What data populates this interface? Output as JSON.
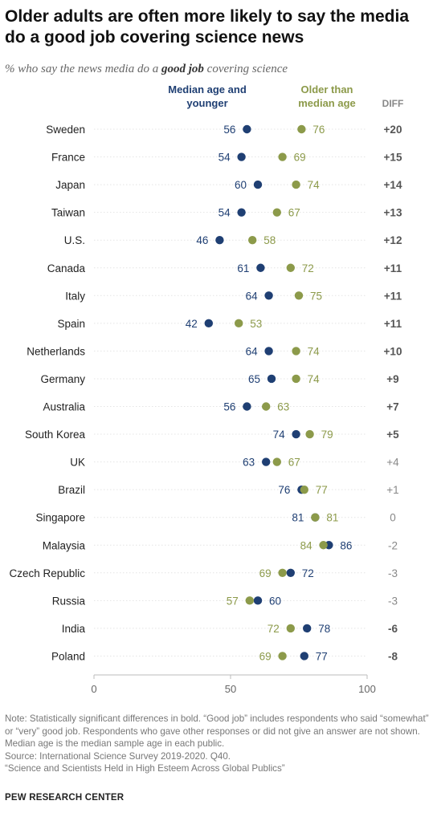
{
  "title": "Older adults are often more likely to say the media do a good job covering science news",
  "subtitle": {
    "before": "% who say the news media do a ",
    "bold": "good job",
    "after": " covering science"
  },
  "legend": {
    "younger": "Median age and younger",
    "older": "Older than median age",
    "diff": "DIFF"
  },
  "colors": {
    "younger": "#1f3f73",
    "older": "#8c9a4a",
    "diff_significant": "#555555",
    "diff_other": "#888888"
  },
  "chart_data": {
    "type": "scatter",
    "categories": [
      "Sweden",
      "France",
      "Japan",
      "Taiwan",
      "U.S.",
      "Canada",
      "Italy",
      "Spain",
      "Netherlands",
      "Germany",
      "Australia",
      "South Korea",
      "UK",
      "Brazil",
      "Singapore",
      "Malaysia",
      "Czech Republic",
      "Russia",
      "India",
      "Poland"
    ],
    "series": [
      {
        "name": "Median age and younger",
        "values": [
          56,
          54,
          60,
          54,
          46,
          61,
          64,
          42,
          64,
          65,
          56,
          74,
          63,
          76,
          81,
          86,
          72,
          60,
          78,
          77
        ]
      },
      {
        "name": "Older than median age",
        "values": [
          76,
          69,
          74,
          67,
          58,
          72,
          75,
          53,
          74,
          74,
          63,
          79,
          67,
          77,
          81,
          84,
          69,
          57,
          72,
          69
        ]
      }
    ],
    "diff": [
      "+20",
      "+15",
      "+14",
      "+13",
      "+12",
      "+11",
      "+11",
      "+11",
      "+10",
      "+9",
      "+7",
      "+5",
      "+4",
      "+1",
      "0",
      "-2",
      "-3",
      "-3",
      "-6",
      "-8"
    ],
    "diff_significant": [
      true,
      true,
      true,
      true,
      true,
      true,
      true,
      true,
      true,
      true,
      true,
      true,
      false,
      false,
      false,
      false,
      false,
      false,
      true,
      true
    ],
    "xlim": [
      0,
      100
    ],
    "xticks": [
      "0",
      "50",
      "100"
    ]
  },
  "notes": [
    "Note: Statistically significant differences in bold. “Good job” includes respondents who said “somewhat” or “very” good job. Respondents who gave other responses or did not give an answer are not shown. Median age is the median sample age in each public.",
    "Source: International Science Survey 2019-2020. Q40.",
    "“Science and Scientists Held in High Esteem Across Global Publics”"
  ],
  "source_org": "PEW RESEARCH CENTER"
}
